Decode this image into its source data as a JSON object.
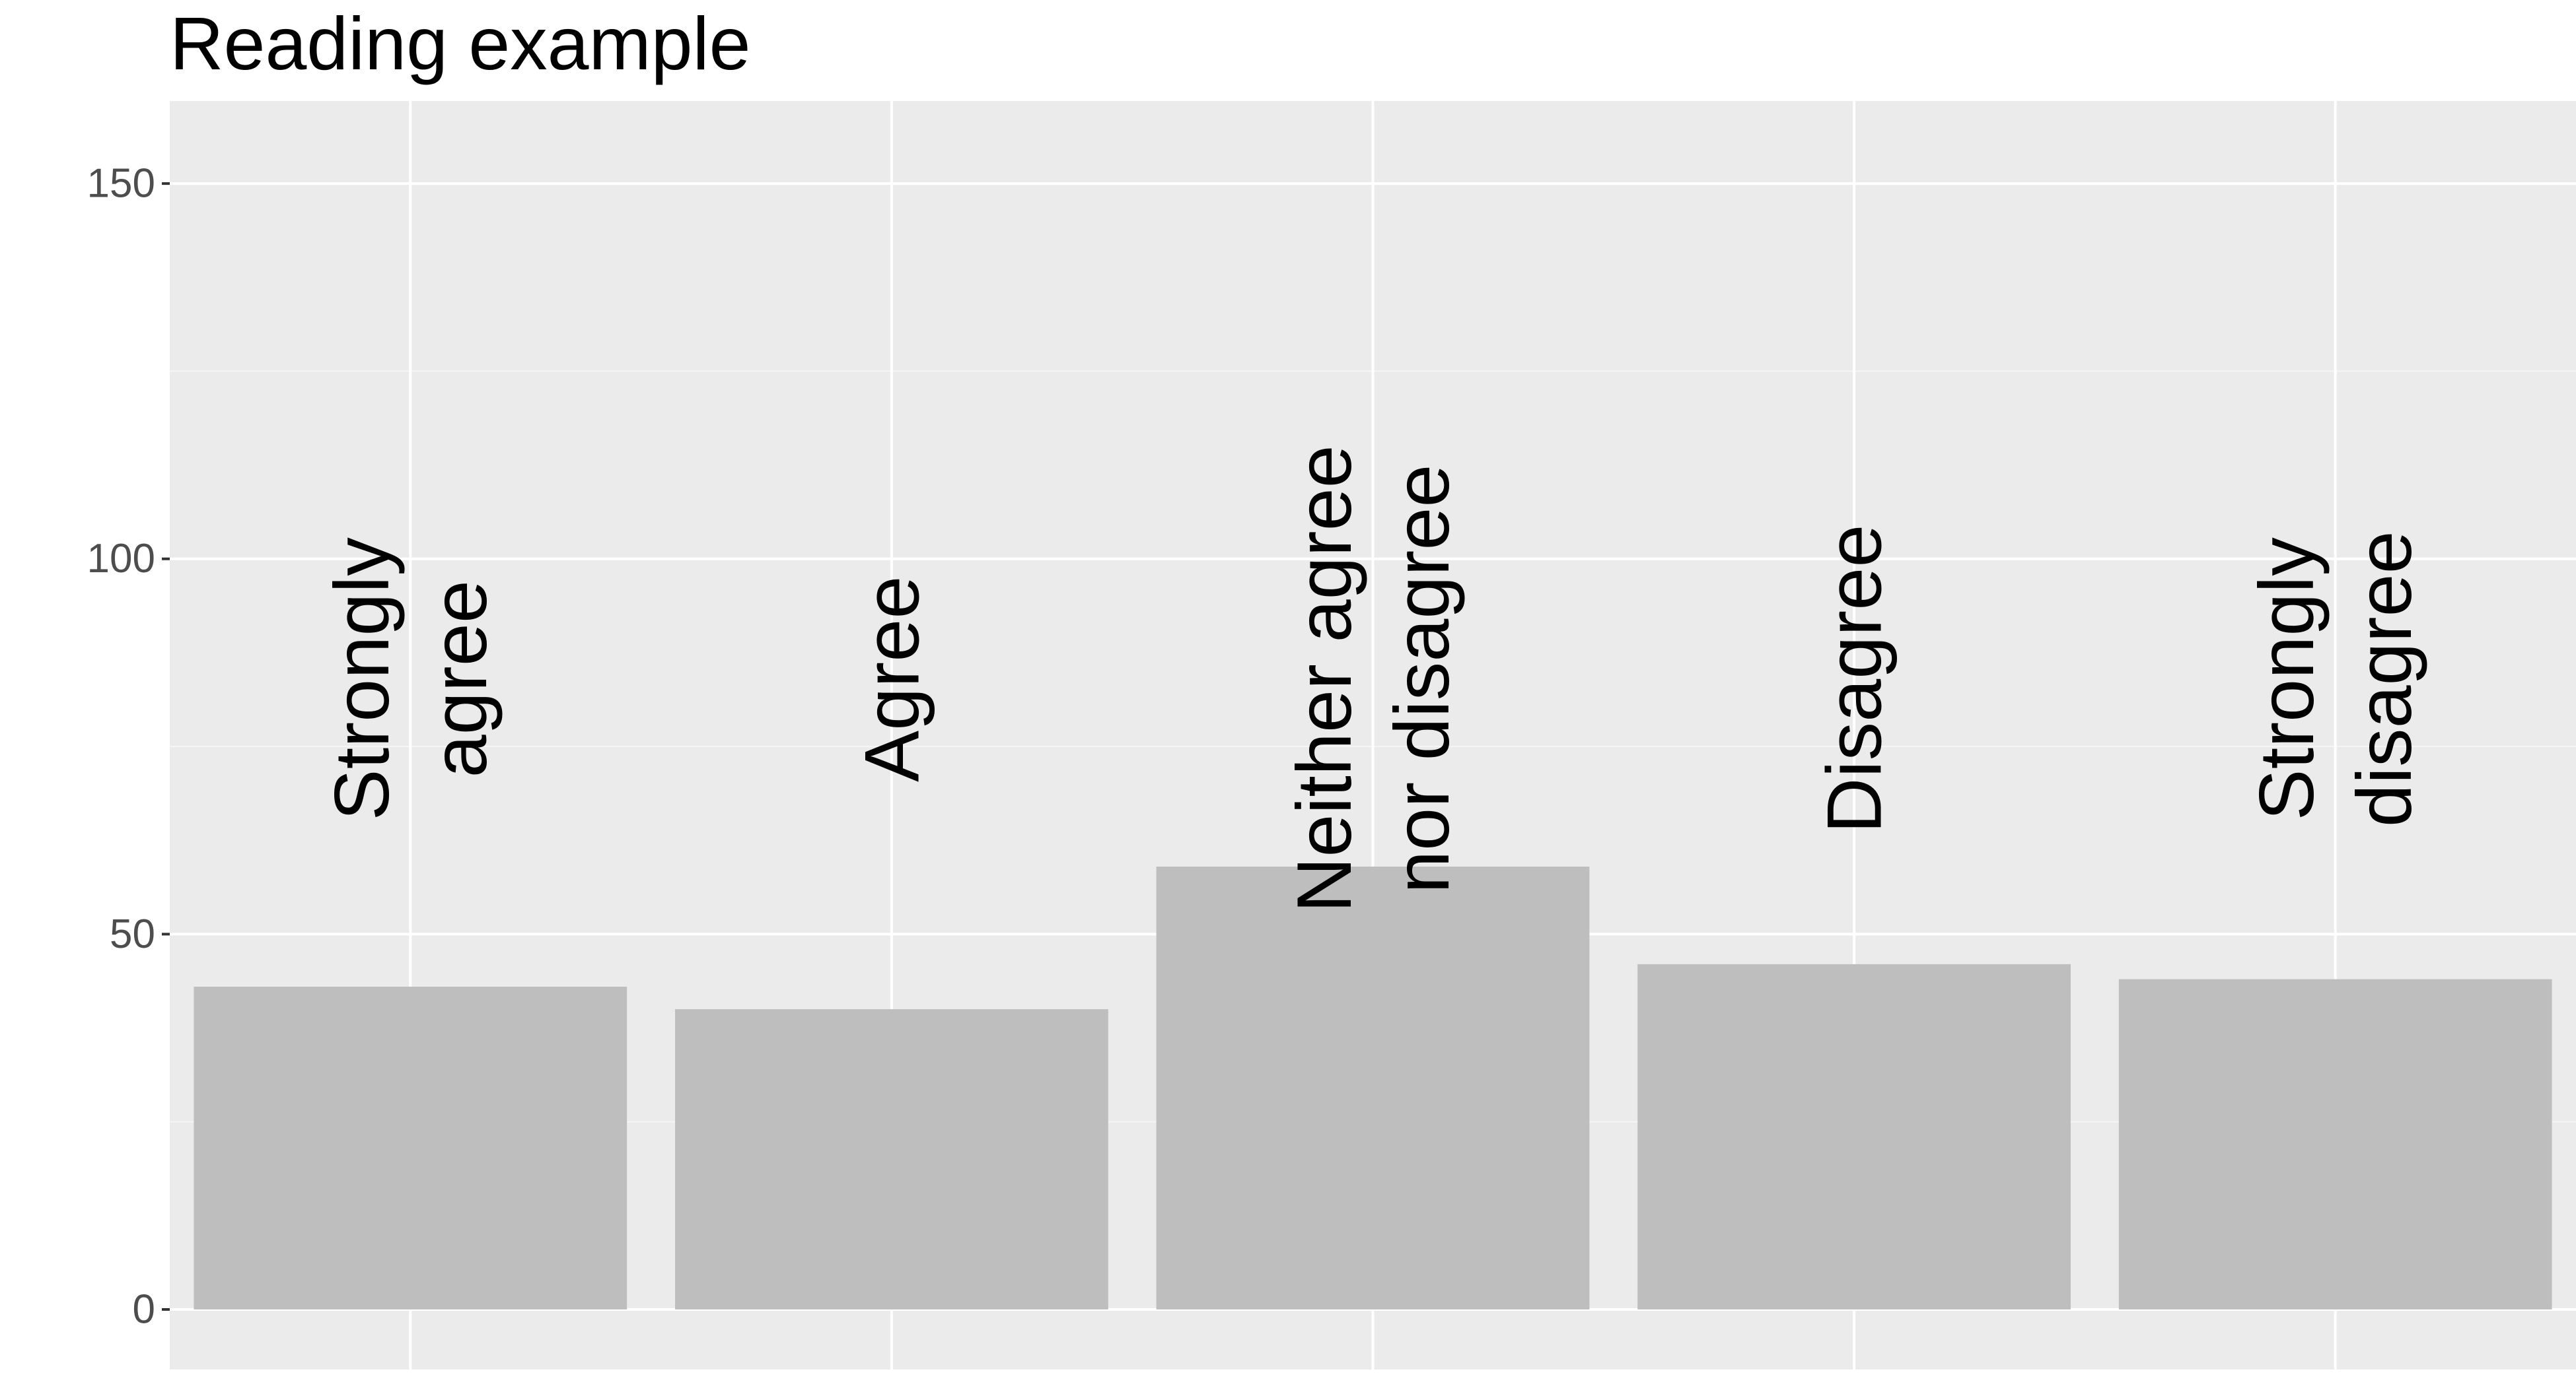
{
  "chart_data": {
    "type": "bar",
    "title": "Reading example",
    "xlabel": "",
    "ylabel": "",
    "categories": [
      [
        "Strongly",
        "agree"
      ],
      [
        "Agree"
      ],
      [
        "Neither agree",
        "nor disagree"
      ],
      [
        "Disagree"
      ],
      [
        "Strongly",
        "disagree"
      ]
    ],
    "values": [
      43,
      40,
      59,
      46,
      44
    ],
    "ylim": [
      -8,
      161
    ],
    "yticks": [
      0,
      50,
      100,
      150
    ],
    "ytick_labels": [
      "0",
      "50",
      "100",
      "150"
    ],
    "label_y": 84,
    "grid": true,
    "legend": "none",
    "colors": {
      "panel": "#EBEBEB",
      "grid_major": "#FFFFFF",
      "grid_minor": "#F5F5F5",
      "bar": "#BEBEBE",
      "tick_text": "#4D4D4D",
      "tick_mark": "#333333",
      "label_text": "#000000",
      "title_text": "#000000"
    }
  }
}
